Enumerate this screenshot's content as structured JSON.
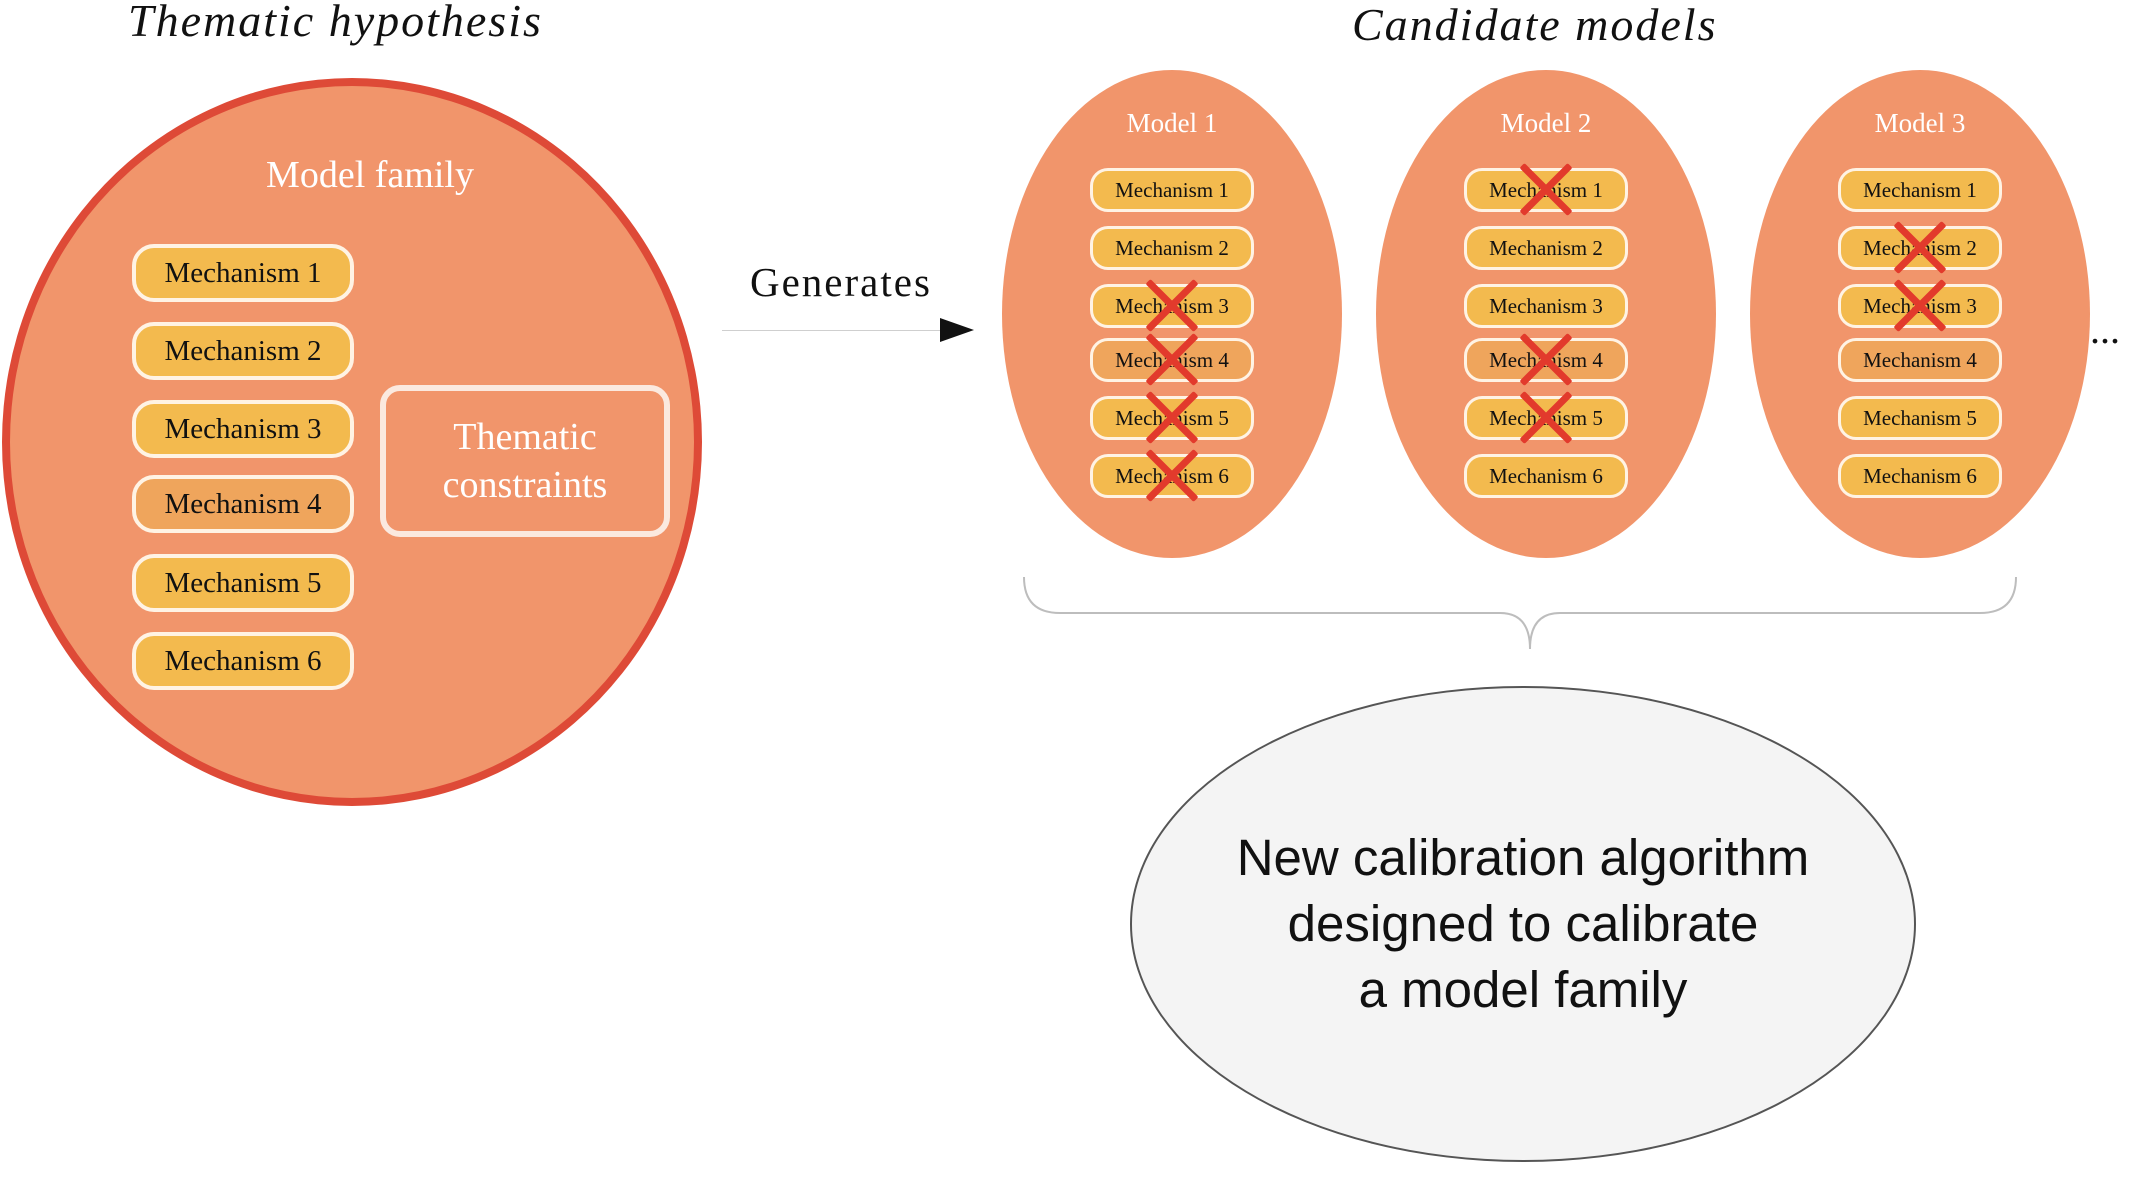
{
  "thematic_hypothesis": {
    "title": "Thematic hypothesis",
    "family_title": "Model family",
    "mechanisms": [
      "Mechanism 1",
      "Mechanism 2",
      "Mechanism 3",
      "Mechanism 4",
      "Mechanism 5",
      "Mechanism 6"
    ],
    "constraints_line1": "Thematic",
    "constraints_line2": "constraints"
  },
  "arrow": {
    "label": "Generates"
  },
  "candidate_models": {
    "title": "Candidate models",
    "ellipsis": "...",
    "models": [
      {
        "title": "Model 1",
        "mechanisms": [
          "Mechanism 1",
          "Mechanism 2",
          "Mechanism 3",
          "Mechanism 4",
          "Mechanism 5",
          "Mechanism 6"
        ],
        "crossed": [
          false,
          false,
          true,
          true,
          true,
          true
        ]
      },
      {
        "title": "Model 2",
        "mechanisms": [
          "Mechanism 1",
          "Mechanism 2",
          "Mechanism 3",
          "Mechanism 4",
          "Mechanism 5",
          "Mechanism 6"
        ],
        "crossed": [
          true,
          false,
          false,
          true,
          true,
          false
        ]
      },
      {
        "title": "Model 3",
        "mechanisms": [
          "Mechanism 1",
          "Mechanism 2",
          "Mechanism 3",
          "Mechanism 4",
          "Mechanism 5",
          "Mechanism 6"
        ],
        "crossed": [
          false,
          true,
          true,
          false,
          false,
          false
        ]
      }
    ]
  },
  "algorithm": {
    "line1": "New calibration algorithm",
    "line2": "designed to calibrate",
    "line3": "a model family"
  },
  "colors": {
    "ellipse_fill": "#f1956b",
    "outline_red": "#de4a37",
    "mechanism_fill": "#f3ba4e",
    "cross": "#e23a2c"
  }
}
